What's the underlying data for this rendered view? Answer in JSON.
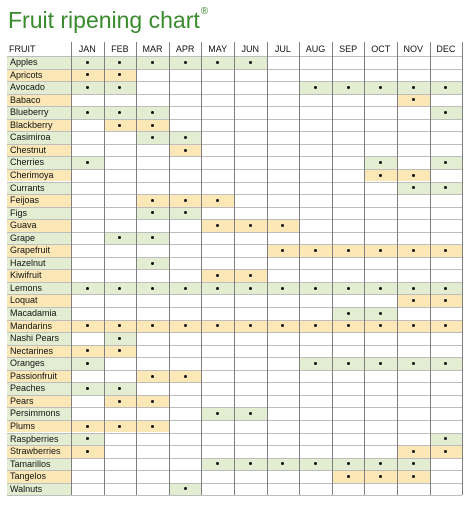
{
  "title": "Fruit ripening chart",
  "title_mark": "®",
  "header": {
    "fruit_label": "FRUIT",
    "months": [
      "JAN",
      "FEB",
      "MAR",
      "APR",
      "MAY",
      "JUN",
      "JUL",
      "AUG",
      "SEP",
      "OCT",
      "NOV",
      "DEC"
    ]
  },
  "colors": {
    "green": "#e3edd2",
    "yellow": "#fbe8b6",
    "white": "#ffffff"
  },
  "fruits": [
    {
      "name": "Apples",
      "fill": "g",
      "months": [
        1,
        2,
        3,
        4,
        5,
        6
      ]
    },
    {
      "name": "Apricots",
      "fill": "y",
      "months": [
        1,
        2
      ]
    },
    {
      "name": "Avocado",
      "fill": "g",
      "months": [
        1,
        2,
        8,
        9,
        10,
        11,
        12
      ]
    },
    {
      "name": "Babaco",
      "fill": "y",
      "months": [
        11
      ]
    },
    {
      "name": "Blueberry",
      "fill": "g",
      "months": [
        1,
        2,
        3,
        12
      ]
    },
    {
      "name": "Blackberry",
      "fill": "y",
      "months": [
        2,
        3
      ]
    },
    {
      "name": "Casimiroa",
      "fill": "g",
      "months": [
        3,
        4
      ]
    },
    {
      "name": "Chestnut",
      "fill": "y",
      "months": [
        4
      ]
    },
    {
      "name": "Cherries",
      "fill": "g",
      "months": [
        1,
        10,
        12
      ]
    },
    {
      "name": "Cherimoya",
      "fill": "y",
      "months": [
        10,
        11
      ]
    },
    {
      "name": "Currants",
      "fill": "g",
      "months": [
        11,
        12
      ]
    },
    {
      "name": "Feijoas",
      "fill": "y",
      "months": [
        3,
        4,
        5
      ]
    },
    {
      "name": "Figs",
      "fill": "g",
      "months": [
        3,
        4
      ]
    },
    {
      "name": "Guava",
      "fill": "y",
      "months": [
        5,
        6,
        7
      ]
    },
    {
      "name": "Grape",
      "fill": "g",
      "months": [
        2,
        3
      ]
    },
    {
      "name": "Grapefruit",
      "fill": "y",
      "months": [
        7,
        8,
        9,
        10,
        11,
        12
      ]
    },
    {
      "name": "Hazelnut",
      "fill": "g",
      "months": [
        3
      ]
    },
    {
      "name": "Kiwifruit",
      "fill": "y",
      "months": [
        5,
        6
      ]
    },
    {
      "name": "Lemons",
      "fill": "g",
      "months": [
        1,
        2,
        3,
        4,
        5,
        6,
        7,
        8,
        9,
        10,
        11,
        12
      ]
    },
    {
      "name": "Loquat",
      "fill": "y",
      "months": [
        11,
        12
      ]
    },
    {
      "name": "Macadamia",
      "fill": "g",
      "months": [
        9,
        10
      ]
    },
    {
      "name": "Mandarins",
      "fill": "y",
      "months": [
        1,
        2,
        3,
        4,
        5,
        6,
        7,
        8,
        9,
        10,
        11,
        12
      ]
    },
    {
      "name": "Nashi Pears",
      "fill": "g",
      "months": [
        2
      ]
    },
    {
      "name": "Nectarines",
      "fill": "y",
      "months": [
        1,
        2
      ]
    },
    {
      "name": "Oranges",
      "fill": "g",
      "months": [
        1,
        8,
        9,
        10,
        11,
        12
      ]
    },
    {
      "name": "Passionfruit",
      "fill": "y",
      "months": [
        3,
        4
      ]
    },
    {
      "name": "Peaches",
      "fill": "g",
      "months": [
        1,
        2
      ]
    },
    {
      "name": "Pears",
      "fill": "y",
      "months": [
        2,
        3
      ]
    },
    {
      "name": "Persimmons",
      "fill": "g",
      "months": [
        5,
        6
      ]
    },
    {
      "name": "Plums",
      "fill": "y",
      "months": [
        1,
        2,
        3
      ]
    },
    {
      "name": "Raspberries",
      "fill": "g",
      "months": [
        1,
        12
      ]
    },
    {
      "name": "Strawberries",
      "fill": "y",
      "months": [
        1,
        11,
        12
      ]
    },
    {
      "name": "Tamarillos",
      "fill": "g",
      "months": [
        5,
        6,
        7,
        8,
        9,
        10,
        11
      ]
    },
    {
      "name": "Tangelos",
      "fill": "y",
      "months": [
        9,
        10,
        11
      ]
    },
    {
      "name": "Walnuts",
      "fill": "g",
      "months": [
        4
      ]
    }
  ]
}
